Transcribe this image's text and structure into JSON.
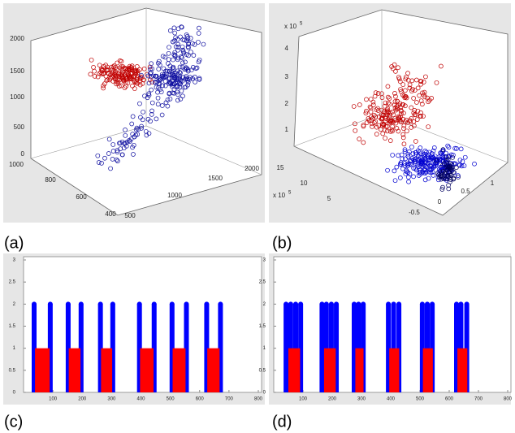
{
  "panels": [
    {
      "label": "(a)",
      "z_ticks": [
        "2000",
        "1500",
        "1000",
        "500",
        "0"
      ],
      "y_ticks": [
        "1000",
        "800",
        "600",
        "400"
      ],
      "x_ticks": [
        "500",
        "1000",
        "1500",
        "2000"
      ]
    },
    {
      "label": "(b)",
      "z_ticks": [
        "4",
        "3",
        "2",
        "1"
      ],
      "z_exponent": "x 10",
      "z_power": "5",
      "y_ticks": [
        "15",
        "10",
        "5"
      ],
      "y_exponent": "x 10",
      "y_power": "5",
      "x_ticks": [
        "-0.5",
        "0",
        "0.5",
        "1"
      ]
    },
    {
      "label": "(c)"
    },
    {
      "label": "(d)"
    }
  ],
  "chart_data": [
    {
      "type": "stem",
      "xlim": [
        0,
        800
      ],
      "ylim": [
        0,
        3
      ],
      "xticks": [
        100,
        200,
        300,
        400,
        500,
        600,
        700,
        800
      ],
      "yticks": [
        0,
        0.5,
        1,
        1.5,
        2,
        2.5,
        3
      ],
      "series": [
        {
          "name": "blue",
          "color": "#0000ff",
          "x": [
            36,
            91,
            152,
            196,
            262,
            304,
            395,
            445,
            506,
            555,
            624,
            671
          ],
          "values": [
            2,
            2,
            2,
            2,
            2,
            2,
            2,
            2,
            2,
            2,
            2,
            2
          ]
        },
        {
          "name": "red",
          "color": "#ff0000",
          "x": [
            64,
            174,
            283,
            420,
            530,
            647
          ],
          "widths": [
            50,
            40,
            38,
            46,
            44,
            42
          ],
          "values": [
            1,
            1,
            1,
            1,
            1,
            1
          ]
        }
      ]
    },
    {
      "type": "stem",
      "xlim": [
        0,
        800
      ],
      "ylim": [
        0,
        3
      ],
      "xticks": [
        100,
        200,
        300,
        400,
        500,
        600,
        700,
        800
      ],
      "yticks": [
        0,
        0.5,
        1,
        1.5,
        2,
        2.5,
        3
      ],
      "series": [
        {
          "name": "blue",
          "color": "#0000ff",
          "x": [
            42,
            58,
            75,
            92,
            165,
            180,
            197,
            214,
            275,
            290,
            306,
            392,
            410,
            428,
            508,
            525,
            542,
            625,
            640,
            660
          ],
          "values": [
            2,
            2,
            2,
            2,
            2,
            2,
            2,
            2,
            2,
            2,
            2,
            2,
            2,
            2,
            2,
            2,
            2,
            2,
            2,
            2
          ]
        },
        {
          "name": "red",
          "color": "#ff0000",
          "x": [
            70,
            192,
            293,
            412,
            527,
            645
          ],
          "widths": [
            40,
            40,
            28,
            34,
            34,
            34
          ],
          "values": [
            1,
            1,
            1,
            1,
            1,
            1
          ]
        }
      ]
    }
  ]
}
